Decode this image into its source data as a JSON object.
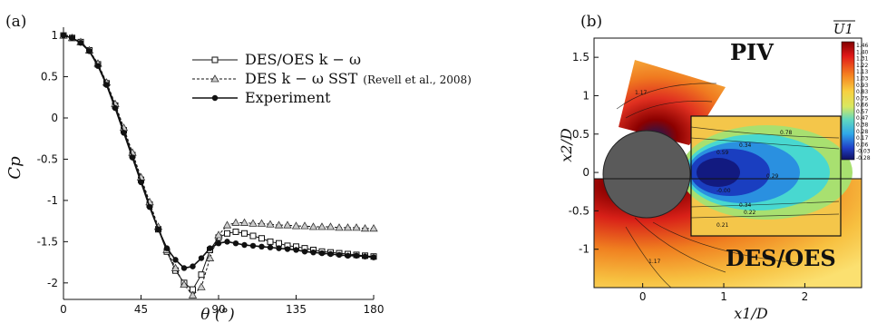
{
  "chart_data": [
    {
      "panel_label": "(a)",
      "type": "line",
      "xlabel": "θ (°)",
      "ylabel": "Cp",
      "xlim": [
        0,
        180
      ],
      "ylim": [
        -2.2,
        1.1
      ],
      "x_ticks": [
        "0",
        "45",
        "90",
        "135",
        "180"
      ],
      "y_ticks": [
        "1",
        "0.5",
        "0",
        "-0.5",
        "-1",
        "-1.5",
        "-2"
      ],
      "legend": {
        "placement": "top-right",
        "entries": [
          {
            "label": "DES/OES k − ω",
            "marker": "square"
          },
          {
            "label": "DES k − ω SST",
            "note": "(Revell et al., 2008)",
            "marker": "triangle"
          },
          {
            "label": "Experiment",
            "marker": "circle"
          }
        ]
      },
      "series": [
        {
          "name": "DES/OES k − ω",
          "marker": "square",
          "x": [
            0,
            5,
            10,
            15,
            20,
            25,
            30,
            35,
            40,
            45,
            50,
            55,
            60,
            65,
            70,
            75,
            80,
            85,
            90,
            95,
            100,
            105,
            110,
            115,
            120,
            125,
            130,
            135,
            140,
            145,
            150,
            155,
            160,
            165,
            170,
            175,
            180
          ],
          "y": [
            1.0,
            0.97,
            0.92,
            0.82,
            0.65,
            0.42,
            0.15,
            -0.15,
            -0.45,
            -0.75,
            -1.05,
            -1.35,
            -1.62,
            -1.85,
            -2.0,
            -2.08,
            -1.9,
            -1.6,
            -1.45,
            -1.4,
            -1.38,
            -1.4,
            -1.43,
            -1.46,
            -1.5,
            -1.52,
            -1.55,
            -1.56,
            -1.58,
            -1.6,
            -1.62,
            -1.63,
            -1.64,
            -1.65,
            -1.66,
            -1.67,
            -1.68
          ]
        },
        {
          "name": "DES k − ω SST",
          "marker": "triangle",
          "x": [
            0,
            5,
            10,
            15,
            20,
            25,
            30,
            35,
            40,
            45,
            50,
            55,
            60,
            65,
            70,
            75,
            80,
            85,
            90,
            95,
            100,
            105,
            110,
            115,
            120,
            125,
            130,
            135,
            140,
            145,
            150,
            155,
            160,
            165,
            170,
            175,
            180
          ],
          "y": [
            1.0,
            0.97,
            0.92,
            0.82,
            0.66,
            0.43,
            0.17,
            -0.12,
            -0.42,
            -0.72,
            -1.02,
            -1.32,
            -1.6,
            -1.82,
            -2.02,
            -2.15,
            -2.05,
            -1.7,
            -1.42,
            -1.3,
            -1.27,
            -1.27,
            -1.28,
            -1.28,
            -1.29,
            -1.3,
            -1.3,
            -1.31,
            -1.31,
            -1.32,
            -1.32,
            -1.32,
            -1.33,
            -1.33,
            -1.33,
            -1.34,
            -1.34
          ]
        },
        {
          "name": "Experiment",
          "marker": "circle",
          "x": [
            0,
            5,
            10,
            15,
            20,
            25,
            30,
            35,
            40,
            45,
            50,
            55,
            60,
            65,
            70,
            75,
            80,
            85,
            90,
            95,
            100,
            105,
            110,
            115,
            120,
            125,
            130,
            135,
            140,
            145,
            150,
            155,
            160,
            165,
            170,
            175,
            180
          ],
          "y": [
            1.0,
            0.97,
            0.91,
            0.81,
            0.63,
            0.4,
            0.12,
            -0.18,
            -0.48,
            -0.78,
            -1.08,
            -1.35,
            -1.58,
            -1.72,
            -1.82,
            -1.8,
            -1.7,
            -1.58,
            -1.52,
            -1.5,
            -1.52,
            -1.54,
            -1.55,
            -1.56,
            -1.57,
            -1.58,
            -1.59,
            -1.6,
            -1.62,
            -1.63,
            -1.64,
            -1.65,
            -1.66,
            -1.67,
            -1.67,
            -1.68,
            -1.69
          ]
        }
      ]
    },
    {
      "panel_label": "(b)",
      "type": "heatmap",
      "xlabel": "x1/D",
      "ylabel": "x2/D",
      "xlim": [
        -0.6,
        2.7
      ],
      "ylim": [
        -1.5,
        1.75
      ],
      "x_ticks": [
        "0",
        "1",
        "2"
      ],
      "y_ticks": [
        "1.5",
        "1",
        "0.5",
        "0",
        "-0.5",
        "-1"
      ],
      "region_labels": {
        "top": "PIV",
        "bottom": "DES/OES"
      },
      "colorbar": {
        "title": "U1",
        "values": [
          "1.46",
          "1.40",
          "1.31",
          "1.22",
          "1.13",
          "1.03",
          "0.93",
          "0.83",
          "0.75",
          "0.66",
          "0.57",
          "0.47",
          "0.38",
          "0.28",
          "0.17",
          "0.06",
          "-0.03",
          "-0.28"
        ]
      },
      "contour_labels": [
        "0.78",
        "0.59",
        "0.29",
        "-0.00",
        "1.17",
        "0.34",
        "0.34",
        "1.17",
        "0.22",
        "0.21"
      ]
    }
  ]
}
